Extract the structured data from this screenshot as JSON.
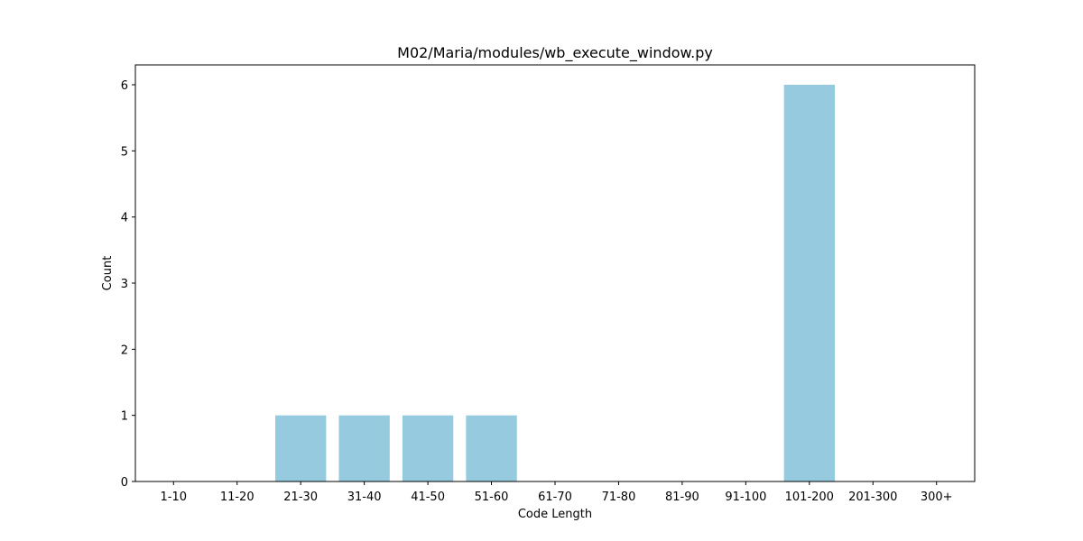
{
  "chart_data": {
    "type": "bar",
    "title": "M02/Maria/modules/wb_execute_window.py",
    "xlabel": "Code Length",
    "ylabel": "Count",
    "categories": [
      "1-10",
      "11-20",
      "21-30",
      "31-40",
      "41-50",
      "51-60",
      "61-70",
      "71-80",
      "81-90",
      "91-100",
      "101-200",
      "201-300",
      "300+"
    ],
    "values": [
      0,
      0,
      1,
      1,
      1,
      1,
      0,
      0,
      0,
      0,
      6,
      0,
      0
    ],
    "ylim": [
      0,
      6.3
    ],
    "yticks": [
      0,
      1,
      2,
      3,
      4,
      5,
      6
    ],
    "bar_color": "#96cade",
    "grid": false,
    "legend": "none"
  }
}
